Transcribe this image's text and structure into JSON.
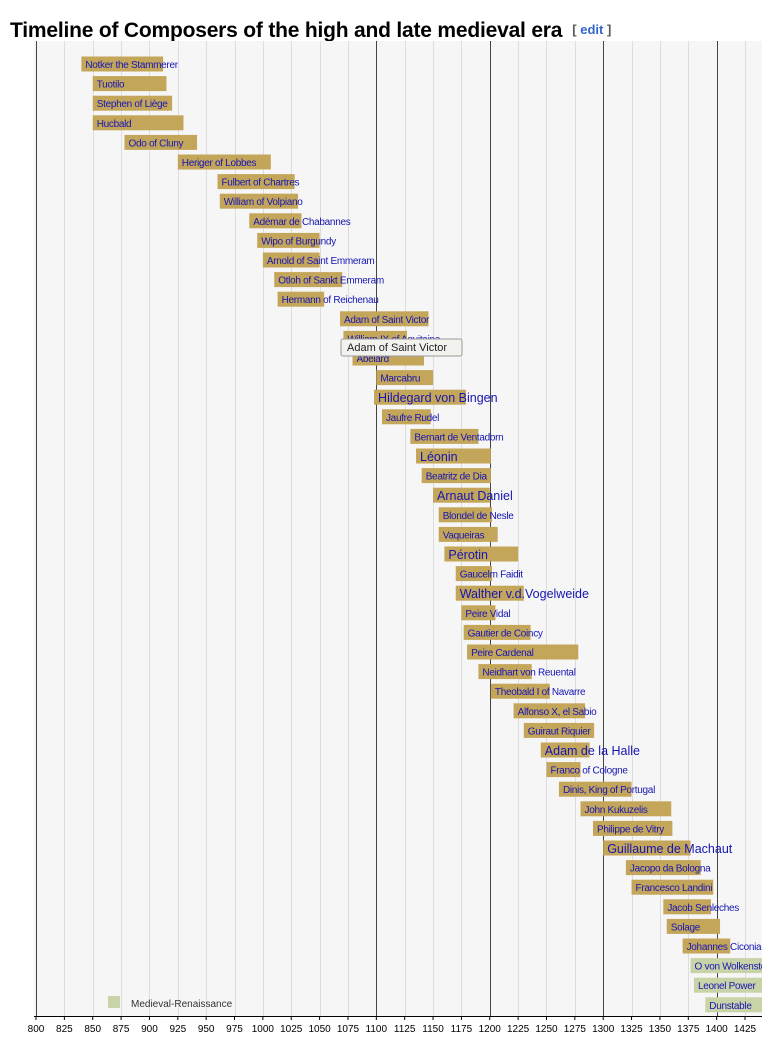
{
  "page": {
    "title": "Timeline of Composers of the high and late medieval era",
    "edit_open": "[",
    "edit_label": "edit",
    "edit_close": "]"
  },
  "colors": {
    "medieval": "#c4a65b",
    "medieval_renaissance": "#c9d3a8",
    "name_text": "#1515b3",
    "background": "#f6f6f6",
    "grid_minor": "#dddddd",
    "grid_major": "#444444"
  },
  "tooltip": {
    "text": "Adam of Saint Victor"
  },
  "chart_data": {
    "type": "timeline",
    "title": "",
    "xlabel": "",
    "ylabel": "",
    "xlim": [
      800,
      1425
    ],
    "x_ticks": [
      800,
      825,
      850,
      875,
      900,
      925,
      950,
      975,
      1000,
      1025,
      1050,
      1075,
      1100,
      1125,
      1150,
      1175,
      1200,
      1225,
      1250,
      1275,
      1300,
      1325,
      1350,
      1375,
      1400,
      1425
    ],
    "major_lines": [
      800,
      1100,
      1200,
      1300,
      1400
    ],
    "grid": true,
    "legend": {
      "position": "bottom-left",
      "entries": [
        {
          "label": "Medieval-Renaissance",
          "color": "#c9d3a8"
        }
      ]
    },
    "composers": [
      {
        "name": "Notker the Stammerer",
        "start": 840,
        "end": 912,
        "period": "medieval"
      },
      {
        "name": "Tuotilo",
        "start": 850,
        "end": 915,
        "period": "medieval"
      },
      {
        "name": "Stephen of Liège",
        "start": 850,
        "end": 920,
        "period": "medieval"
      },
      {
        "name": "Hucbald",
        "start": 850,
        "end": 930,
        "period": "medieval"
      },
      {
        "name": "Odo of Cluny",
        "start": 878,
        "end": 942,
        "period": "medieval"
      },
      {
        "name": "Heriger of Lobbes",
        "start": 925,
        "end": 1007,
        "period": "medieval"
      },
      {
        "name": "Fulbert of Chartres",
        "start": 960,
        "end": 1028,
        "period": "medieval"
      },
      {
        "name": "William of Volpiano",
        "start": 962,
        "end": 1031,
        "period": "medieval"
      },
      {
        "name": "Adémar de Chabannes",
        "start": 988,
        "end": 1034,
        "period": "medieval"
      },
      {
        "name": "Wipo of Burgundy",
        "start": 995,
        "end": 1050,
        "period": "medieval"
      },
      {
        "name": "Arnold of Saint Emmeram",
        "start": 1000,
        "end": 1050,
        "period": "medieval"
      },
      {
        "name": "Otloh of Sankt Emmeram",
        "start": 1010,
        "end": 1070,
        "period": "medieval"
      },
      {
        "name": "Hermann of Reichenau",
        "start": 1013,
        "end": 1054,
        "period": "medieval"
      },
      {
        "name": "Adam of Saint Victor",
        "start": 1068,
        "end": 1146,
        "period": "medieval"
      },
      {
        "name": "William IX of Aquitaine",
        "start": 1071,
        "end": 1127,
        "period": "medieval"
      },
      {
        "name": "Abélard",
        "start": 1079,
        "end": 1142,
        "period": "medieval"
      },
      {
        "name": "Marcabru",
        "start": 1100,
        "end": 1150,
        "period": "medieval"
      },
      {
        "name": "Hildegard von Bingen",
        "start": 1098,
        "end": 1179,
        "period": "medieval",
        "large": true
      },
      {
        "name": "Jaufre Rudel",
        "start": 1105,
        "end": 1148,
        "period": "medieval"
      },
      {
        "name": "Bernart de Ventadorn",
        "start": 1130,
        "end": 1190,
        "period": "medieval"
      },
      {
        "name": "Léonin",
        "start": 1135,
        "end": 1201,
        "period": "medieval",
        "large": true
      },
      {
        "name": "Beatritz de Dia",
        "start": 1140,
        "end": 1201,
        "period": "medieval"
      },
      {
        "name": "Arnaut Daniel",
        "start": 1150,
        "end": 1200,
        "period": "medieval",
        "large": true
      },
      {
        "name": "Blondel de Nesle",
        "start": 1155,
        "end": 1202,
        "period": "medieval"
      },
      {
        "name": "Vaqueiras",
        "start": 1155,
        "end": 1207,
        "period": "medieval"
      },
      {
        "name": "Pérotin",
        "start": 1160,
        "end": 1225,
        "period": "medieval",
        "large": true
      },
      {
        "name": "Gaucelm Faidit",
        "start": 1170,
        "end": 1202,
        "period": "medieval"
      },
      {
        "name": "Walther v.d.Vogelweide",
        "start": 1170,
        "end": 1230,
        "period": "medieval",
        "large": true
      },
      {
        "name": "Peire Vidal",
        "start": 1175,
        "end": 1205,
        "period": "medieval"
      },
      {
        "name": "Gautier de Coincy",
        "start": 1177,
        "end": 1236,
        "period": "medieval"
      },
      {
        "name": "Peire Cardenal",
        "start": 1180,
        "end": 1278,
        "period": "medieval"
      },
      {
        "name": "Neidhart von Reuental",
        "start": 1190,
        "end": 1237,
        "period": "medieval"
      },
      {
        "name": "Theobald I of Navarre",
        "start": 1201,
        "end": 1253,
        "period": "medieval"
      },
      {
        "name": "Alfonso X, el Sabio",
        "start": 1221,
        "end": 1284,
        "period": "medieval"
      },
      {
        "name": "Guiraut Riquier",
        "start": 1230,
        "end": 1292,
        "period": "medieval"
      },
      {
        "name": "Adam de la Halle",
        "start": 1245,
        "end": 1288,
        "period": "medieval",
        "large": true
      },
      {
        "name": "Franco of Cologne",
        "start": 1250,
        "end": 1280,
        "period": "medieval"
      },
      {
        "name": "Dinis, King of Portugal",
        "start": 1261,
        "end": 1325,
        "period": "medieval"
      },
      {
        "name": "John Kukuzelis",
        "start": 1280,
        "end": 1360,
        "period": "medieval"
      },
      {
        "name": "Philippe de Vitry",
        "start": 1291,
        "end": 1361,
        "period": "medieval"
      },
      {
        "name": "Guillaume de Machaut",
        "start": 1300,
        "end": 1377,
        "period": "medieval",
        "large": true
      },
      {
        "name": "Jacopo da Bologna",
        "start": 1320,
        "end": 1386,
        "period": "medieval"
      },
      {
        "name": "Francesco Landini",
        "start": 1325,
        "end": 1397,
        "period": "medieval"
      },
      {
        "name": "Jacob Senleches",
        "start": 1353,
        "end": 1395,
        "period": "medieval"
      },
      {
        "name": "Solage",
        "start": 1356,
        "end": 1403,
        "period": "medieval"
      },
      {
        "name": "Johannes Ciconia",
        "start": 1370,
        "end": 1412,
        "period": "medieval"
      },
      {
        "name": "O von Wolkenstein",
        "start": 1377,
        "end": 1445,
        "period": "medieval-renaissance"
      },
      {
        "name": "Leonel Power",
        "start": 1380,
        "end": 1445,
        "period": "medieval-renaissance"
      },
      {
        "name": "Dunstable",
        "start": 1390,
        "end": 1453,
        "period": "medieval-renaissance"
      }
    ]
  }
}
